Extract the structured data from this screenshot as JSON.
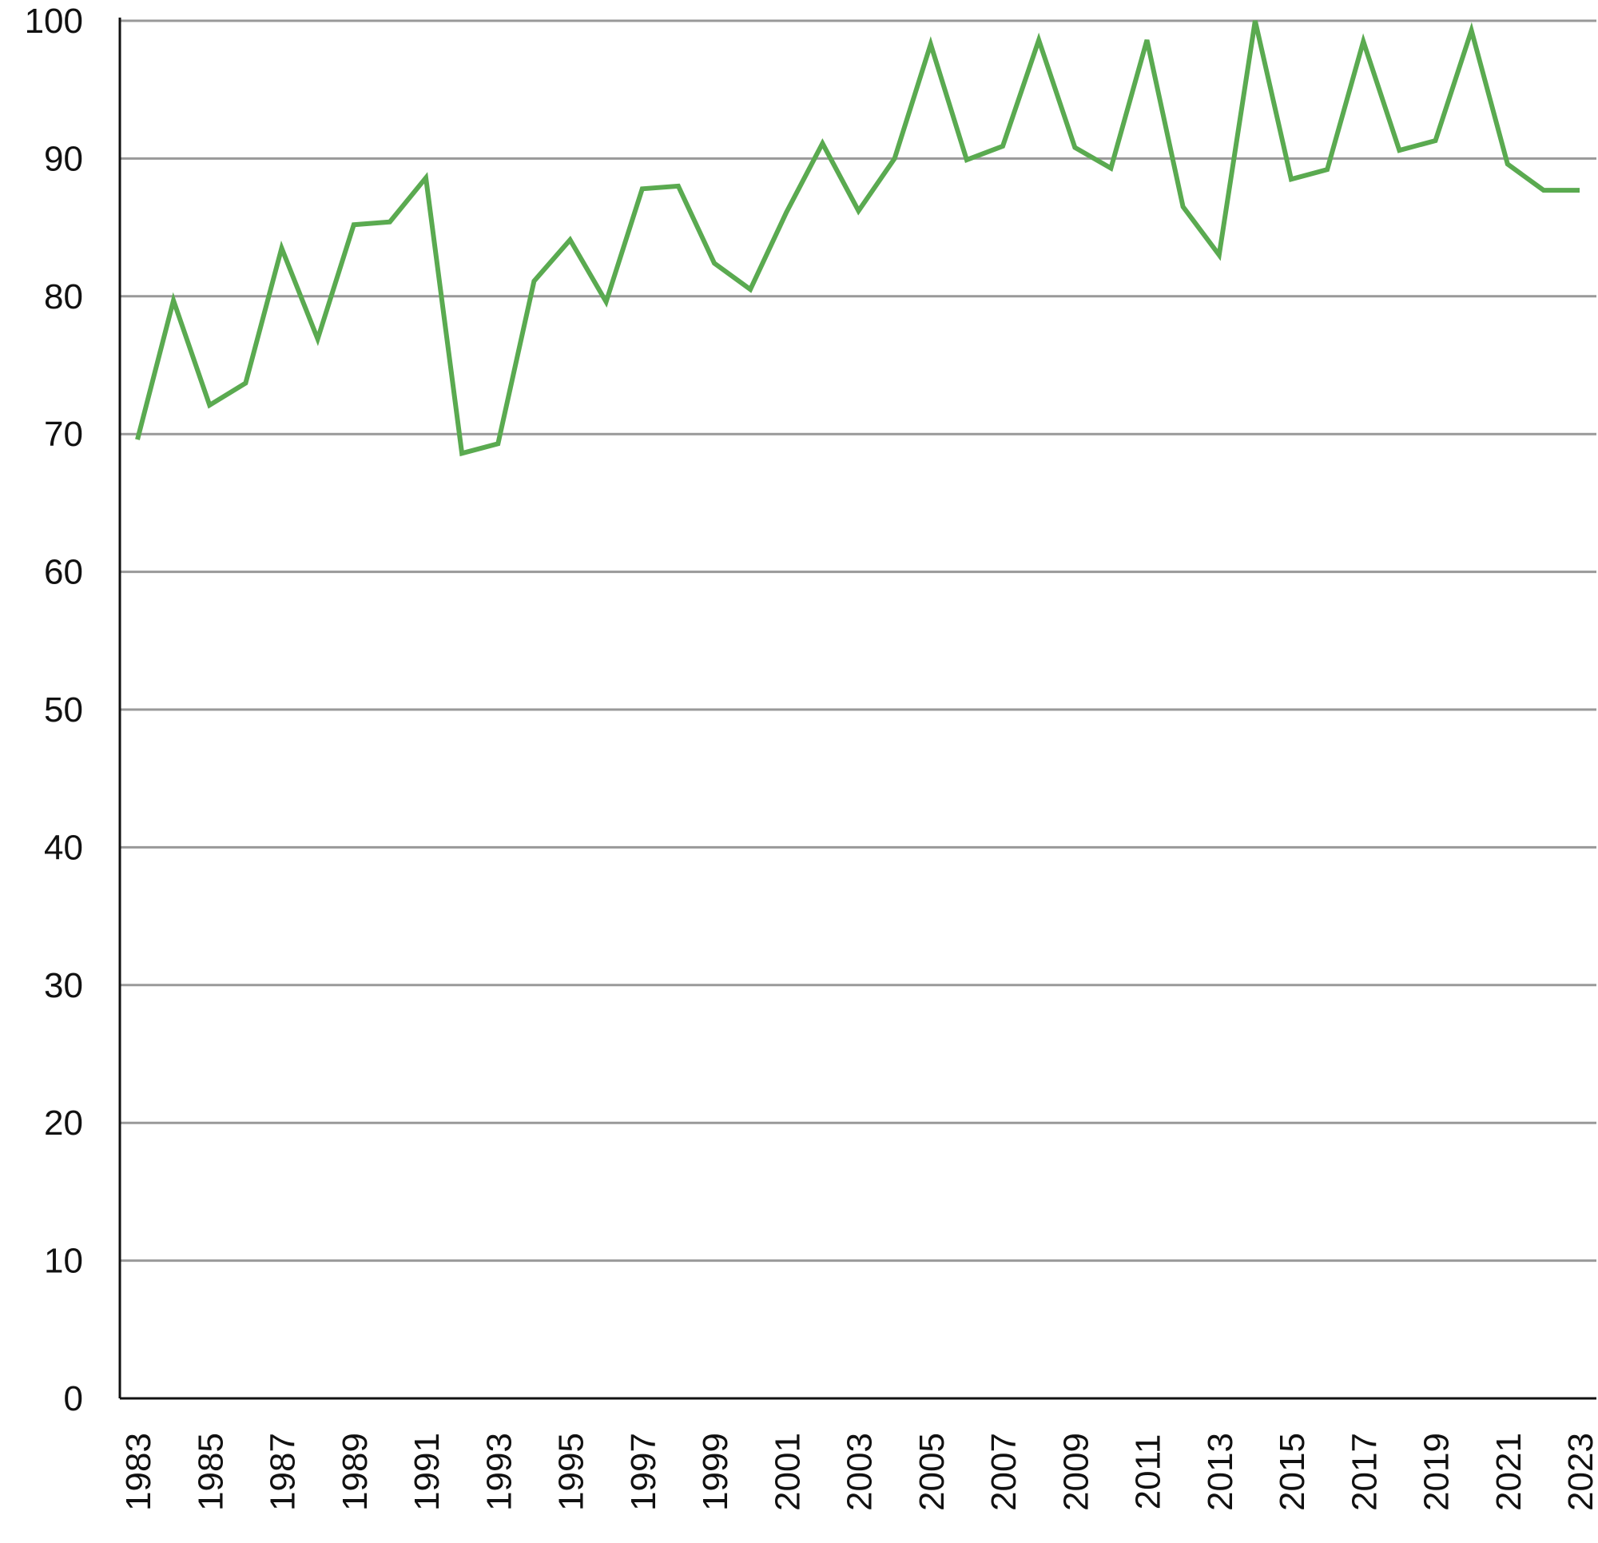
{
  "chart_data": {
    "type": "line",
    "title": "",
    "xlabel": "",
    "ylabel": "",
    "ylim": [
      0,
      100
    ],
    "yticks": [
      "0",
      "10",
      "20",
      "30",
      "40",
      "50",
      "60",
      "70",
      "80",
      "90",
      "100"
    ],
    "x": [
      1983,
      1984,
      1985,
      1986,
      1987,
      1988,
      1989,
      1990,
      1991,
      1992,
      1993,
      1994,
      1995,
      1996,
      1997,
      1998,
      1999,
      2000,
      2001,
      2002,
      2003,
      2004,
      2005,
      2006,
      2007,
      2008,
      2009,
      2010,
      2011,
      2012,
      2013,
      2014,
      2015,
      2016,
      2017,
      2018,
      2019,
      2020,
      2021,
      2022,
      2023
    ],
    "xtick_labels": [
      "1983",
      "1985",
      "1987",
      "1989",
      "1991",
      "1993",
      "1995",
      "1997",
      "1999",
      "2001",
      "2003",
      "2005",
      "2007",
      "2009",
      "2011",
      "2013",
      "2015",
      "2017",
      "2019",
      "2021",
      "2023"
    ],
    "series": [
      {
        "values": [
          69.6,
          79.7,
          72.1,
          73.7,
          83.5,
          76.9,
          85.2,
          85.4,
          88.6,
          68.6,
          69.3,
          81.1,
          84.1,
          79.6,
          87.8,
          88.0,
          82.4,
          80.5,
          86.1,
          91.1,
          86.2,
          90.0,
          98.3,
          89.9,
          90.9,
          98.6,
          90.8,
          89.3,
          98.6,
          86.5,
          83.0,
          100.0,
          88.5,
          89.2,
          98.5,
          90.6,
          91.3,
          99.3,
          89.6,
          87.7,
          87.7
        ]
      }
    ],
    "grid": true,
    "colors": {
      "line": "#5aaa50",
      "grid": "#999999",
      "axis": "#111111"
    }
  }
}
